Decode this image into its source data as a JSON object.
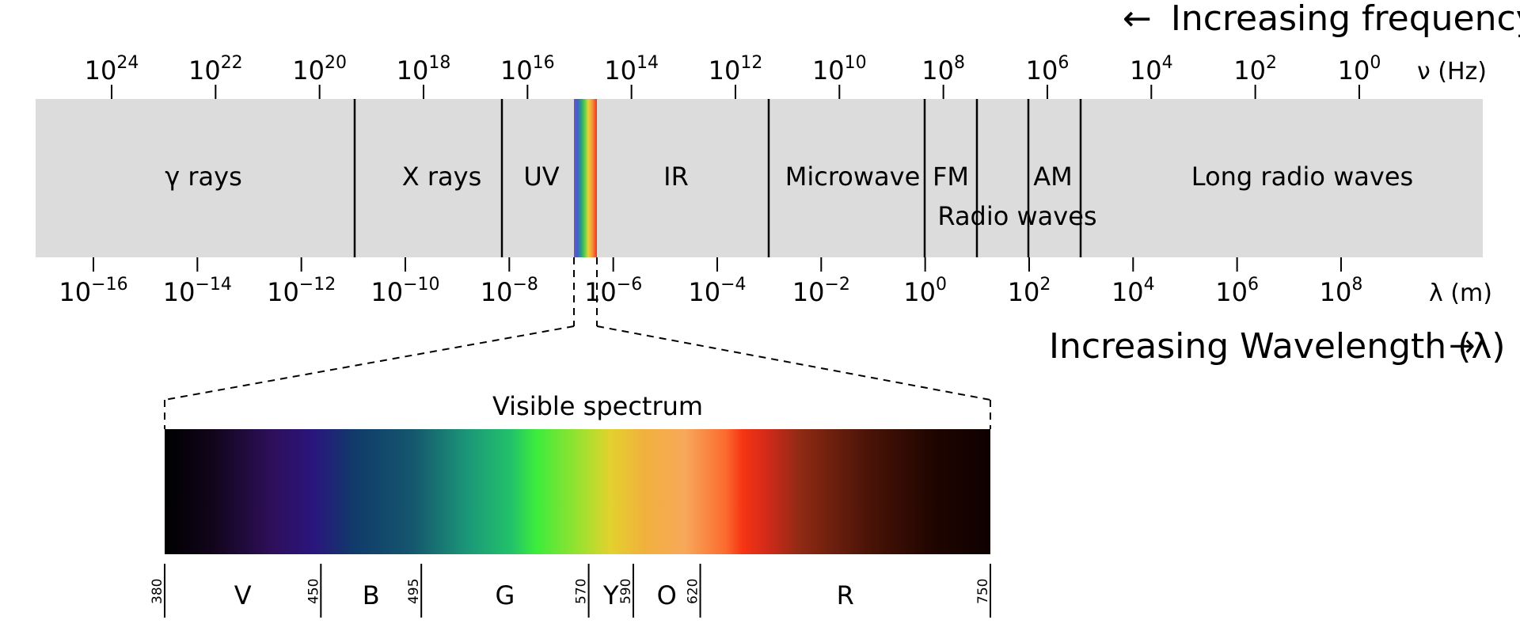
{
  "frequency_axis": {
    "direction_label": "Increasing frequency",
    "arrow_glyph": "←",
    "unit_label": "ν (Hz)",
    "ticks": [
      {
        "base": "10",
        "exp": "24"
      },
      {
        "base": "10",
        "exp": "22"
      },
      {
        "base": "10",
        "exp": "20"
      },
      {
        "base": "10",
        "exp": "18"
      },
      {
        "base": "10",
        "exp": "16"
      },
      {
        "base": "10",
        "exp": "14"
      },
      {
        "base": "10",
        "exp": "12"
      },
      {
        "base": "10",
        "exp": "10"
      },
      {
        "base": "10",
        "exp": "8"
      },
      {
        "base": "10",
        "exp": "6"
      },
      {
        "base": "10",
        "exp": "4"
      },
      {
        "base": "10",
        "exp": "2"
      },
      {
        "base": "10",
        "exp": "0"
      }
    ]
  },
  "wavelength_axis": {
    "direction_label": "Increasing Wavelength (λ)",
    "arrow_glyph": "→",
    "unit_label": "λ (m)",
    "ticks": [
      {
        "base": "10",
        "exp": "−16"
      },
      {
        "base": "10",
        "exp": "−14"
      },
      {
        "base": "10",
        "exp": "−12"
      },
      {
        "base": "10",
        "exp": "−10"
      },
      {
        "base": "10",
        "exp": "−8"
      },
      {
        "base": "10",
        "exp": "−6"
      },
      {
        "base": "10",
        "exp": "−4"
      },
      {
        "base": "10",
        "exp": "−2"
      },
      {
        "base": "10",
        "exp": "0"
      },
      {
        "base": "10",
        "exp": "2"
      },
      {
        "base": "10",
        "exp": "4"
      },
      {
        "base": "10",
        "exp": "6"
      },
      {
        "base": "10",
        "exp": "8"
      }
    ]
  },
  "bands": {
    "gamma": "γ rays",
    "xray": "X rays",
    "uv": "UV",
    "ir": "IR",
    "microwave": "Microwave",
    "fm": "FM",
    "am": "AM",
    "radio": "Radio waves",
    "long_radio": "Long radio waves"
  },
  "visible": {
    "title": "Visible spectrum",
    "boundaries": [
      "380",
      "450",
      "495",
      "570",
      "590",
      "620",
      "750"
    ],
    "colors": [
      "V",
      "B",
      "G",
      "Y",
      "O",
      "R"
    ]
  },
  "palette": {
    "band_background": "#dcdcdc",
    "line": "#000000"
  }
}
